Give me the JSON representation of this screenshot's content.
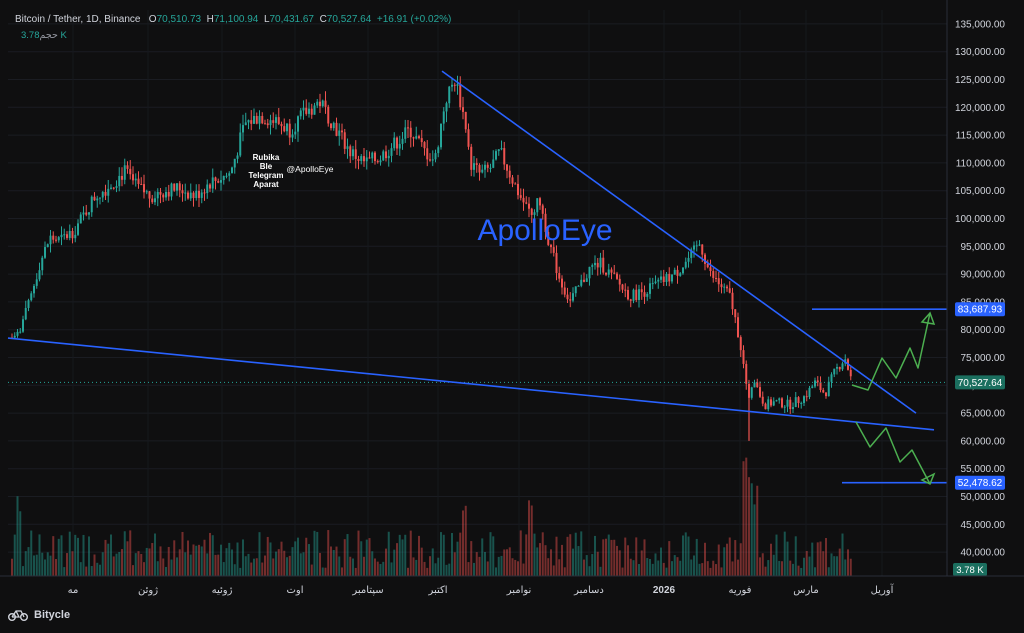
{
  "header": {
    "symbol": "Bitcoin / Tether, 1D, Binance",
    "o_label": "O",
    "o_value": "70,510.73",
    "h_label": "H",
    "h_value": "71,100.94",
    "l_label": "L",
    "l_value": "70,431.67",
    "c_label": "C",
    "c_value": "70,527.64",
    "change": "+16.91 (+0.02%)",
    "volume_label": "حجم",
    "volume_value": "3.78 K"
  },
  "watermark": "ApolloEye",
  "social_note": [
    "Rubika",
    "Ble",
    "Telegram",
    "Aparat"
  ],
  "handle": "@ApolloEye",
  "brand": "Bitycle",
  "colors": {
    "up": "#26a69a",
    "down": "#ef5350",
    "trend": "#2962ff",
    "arrow": "#4caf50",
    "label_bg": "#2962ff",
    "background": "#0f0f10"
  },
  "chart_data": {
    "type": "candlestick",
    "y_ticks": [
      "135,000.00",
      "130,000.00",
      "125,000.00",
      "120,000.00",
      "115,000.00",
      "110,000.00",
      "105,000.00",
      "100,000.00",
      "95,000.00",
      "90,000.00",
      "85,000.00",
      "80,000.00",
      "75,000.00",
      "70,000.00",
      "65,000.00",
      "60,000.00",
      "55,000.00",
      "50,000.00",
      "45,000.00",
      "40,000.00"
    ],
    "x_ticks": [
      "مه",
      "ژوئن",
      "ژوئیه",
      "اوت",
      "سپتامبر",
      "اکتبر",
      "نوامبر",
      "دسامبر",
      "2026",
      "فوریه",
      "مارس",
      "آوریل"
    ],
    "ylim": [
      37500,
      137500
    ],
    "price_path": [
      [
        0,
        82000
      ],
      [
        8,
        78000
      ],
      [
        18,
        79500
      ],
      [
        28,
        84000
      ],
      [
        40,
        92000
      ],
      [
        50,
        96500
      ],
      [
        60,
        96000
      ],
      [
        75,
        98000
      ],
      [
        95,
        104000
      ],
      [
        110,
        106000
      ],
      [
        125,
        108500
      ],
      [
        135,
        106000
      ],
      [
        150,
        104000
      ],
      [
        165,
        105000
      ],
      [
        180,
        105500
      ],
      [
        195,
        104000
      ],
      [
        210,
        106500
      ],
      [
        230,
        108000
      ],
      [
        245,
        117000
      ],
      [
        260,
        118500
      ],
      [
        275,
        117500
      ],
      [
        290,
        116000
      ],
      [
        305,
        119000
      ],
      [
        320,
        121000
      ],
      [
        335,
        116500
      ],
      [
        350,
        112000
      ],
      [
        365,
        110000
      ],
      [
        380,
        111000
      ],
      [
        395,
        113500
      ],
      [
        410,
        116000
      ],
      [
        425,
        112000
      ],
      [
        435,
        110500
      ],
      [
        445,
        121000
      ],
      [
        455,
        125000
      ],
      [
        462,
        120000
      ],
      [
        470,
        110000
      ],
      [
        480,
        108000
      ],
      [
        490,
        109000
      ],
      [
        500,
        112000
      ],
      [
        510,
        108000
      ],
      [
        520,
        104000
      ],
      [
        530,
        101000
      ],
      [
        540,
        103000
      ],
      [
        550,
        95000
      ],
      [
        560,
        89000
      ],
      [
        570,
        85000
      ],
      [
        580,
        88000
      ],
      [
        590,
        91000
      ],
      [
        600,
        92000
      ],
      [
        615,
        89000
      ],
      [
        630,
        86000
      ],
      [
        645,
        87000
      ],
      [
        660,
        88500
      ],
      [
        675,
        90000
      ],
      [
        690,
        93000
      ],
      [
        700,
        95500
      ],
      [
        710,
        90000
      ],
      [
        720,
        88000
      ],
      [
        730,
        86000
      ],
      [
        740,
        78000
      ],
      [
        748,
        68000
      ],
      [
        755,
        70000
      ],
      [
        765,
        66500
      ],
      [
        775,
        67000
      ],
      [
        790,
        66500
      ],
      [
        805,
        68000
      ],
      [
        815,
        70500
      ],
      [
        825,
        68500
      ],
      [
        835,
        72500
      ],
      [
        845,
        75000
      ],
      [
        852,
        70527.64
      ]
    ],
    "trendlines": [
      {
        "name": "descending-resistance",
        "from": [
          442,
          126500
        ],
        "to": [
          916,
          65000
        ]
      },
      {
        "name": "support",
        "from": [
          8,
          78500
        ],
        "to": [
          934,
          62000
        ]
      }
    ],
    "levels": [
      {
        "name": "target-high",
        "value": 83687.93,
        "label": "83,687.93",
        "x_from": 812
      },
      {
        "name": "target-low",
        "value": 52478.62,
        "label": "52,478.62",
        "x_from": 842
      }
    ],
    "last_price": {
      "value": 70527.64,
      "label": "70,527.64"
    },
    "volume_label": "3.78 K"
  }
}
